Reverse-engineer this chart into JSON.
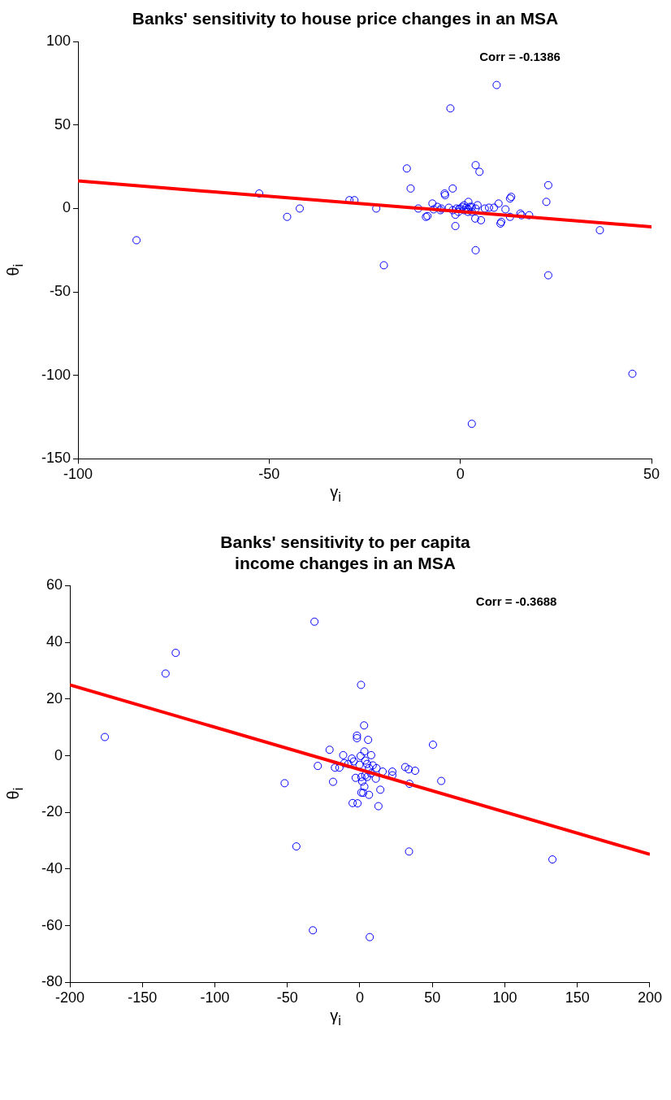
{
  "chart_data": [
    {
      "type": "scatter",
      "title": "Banks' sensitivity to house price changes in an MSA",
      "xlabel": "γ$_{i}$",
      "ylabel": "θ$_{i}$",
      "annotations": [
        "Corr = -0.1386"
      ],
      "xlim": [
        -100,
        50
      ],
      "xticks": [
        -100,
        -50,
        0,
        50
      ],
      "ylim": [
        -150,
        100
      ],
      "yticks": [
        -150,
        -100,
        -50,
        0,
        50,
        100
      ],
      "grid": false,
      "legend": false,
      "marker": "circle",
      "series": [
        {
          "type": "scatter",
          "color": "#0000ff",
          "x": [
            -84.7,
            -52.6,
            -45.3,
            -42,
            -29,
            -27.7,
            -22,
            -20,
            -14,
            -13,
            -11,
            -9,
            -2.6,
            -2,
            -1.3,
            -4,
            4,
            5,
            4,
            9.5,
            10.5,
            13,
            13,
            16,
            18,
            23,
            22.5,
            23,
            36.5,
            45,
            3,
            -8.6,
            -7.3,
            -5.2,
            -4.1,
            -0.4,
            -1.3,
            2.1,
            3.9,
            5.4,
            4.5,
            6.4,
            7.5,
            8.8,
            10,
            11.8,
            10.7,
            13.3,
            15.7,
            0,
            0.5,
            1,
            1.5,
            2,
            2.5,
            -1,
            -2,
            -3,
            -5,
            -6,
            -7,
            3,
            4,
            -0.5,
            1,
            2,
            3
          ],
          "values": [
            -19,
            9,
            -5,
            0,
            5,
            5,
            0,
            -34,
            24,
            12,
            0,
            -5,
            60,
            12,
            -10.5,
            8,
            26,
            22,
            -25,
            74,
            -9,
            6,
            -5,
            -4,
            -4,
            14,
            4,
            -40,
            -13,
            -99,
            -129,
            -4.5,
            3,
            -1,
            9,
            -0.4,
            -3.7,
            4,
            -6,
            -7,
            2,
            0,
            0.5,
            0.5,
            3,
            -0.5,
            -8,
            7,
            -3,
            0,
            1,
            -1,
            0.5,
            -0.5,
            1,
            0,
            -1,
            0.5,
            0,
            1,
            -0.5,
            -2,
            0,
            -2,
            2,
            -2,
            1
          ]
        },
        {
          "type": "line",
          "color": "#ff0000",
          "marker": "none",
          "x": [
            -100,
            50
          ],
          "values": [
            16.5,
            -11
          ]
        }
      ]
    },
    {
      "type": "scatter",
      "title": "Banks' sensitivity to per capita\nincome changes in an MSA",
      "xlabel": "γ$_{i}$",
      "ylabel": "θ$_{i}$",
      "annotations": [
        "Corr = -0.3688"
      ],
      "xlim": [
        -200,
        200
      ],
      "xticks": [
        -200,
        -150,
        -100,
        -50,
        0,
        50,
        100,
        150,
        200
      ],
      "ylim": [
        -80,
        60
      ],
      "yticks": [
        -80,
        -60,
        -40,
        -20,
        0,
        20,
        40,
        60
      ],
      "grid": false,
      "legend": false,
      "marker": "circle",
      "series": [
        {
          "type": "scatter",
          "color": "#0000ff",
          "x": [
            -175.9,
            -127,
            -134,
            -31.3,
            0.8,
            2.9,
            -2,
            -2,
            5.7,
            50.4,
            -20.9,
            -11.5,
            3.1,
            7.8,
            -29,
            -17.2,
            -14.1,
            -51.9,
            -18.5,
            56.1,
            34.2,
            31.3,
            33.7,
            38.1,
            22.4,
            22.4,
            15.7,
            14.1,
            -2.9,
            1.6,
            3.1,
            1,
            2.3,
            6.3,
            -5,
            -1.6,
            12.8,
            11,
            -43.8,
            33.9,
            132.8,
            -32.4,
            6.8,
            -4.2,
            -5.5,
            0.5,
            3.7,
            5,
            6.3,
            8.9,
            11.5,
            3.7,
            -8,
            -10.7,
            -0.3,
            7.6,
            1,
            5
          ],
          "values": [
            6.6,
            36.3,
            29,
            47.3,
            25,
            10.7,
            7.1,
            6.2,
            5.6,
            3.9,
            2.1,
            0.2,
            1.5,
            0.2,
            -3.6,
            -4.2,
            -4.2,
            -9.7,
            -9.2,
            -8.9,
            -9.9,
            -4,
            -4.8,
            -5.3,
            -5.6,
            -6.9,
            -5.6,
            -12,
            -7.8,
            -9.1,
            -10.9,
            -13,
            -13.1,
            -13.8,
            -16.7,
            -16.8,
            -17.8,
            -8.1,
            -32,
            -33.8,
            -36.6,
            -61.6,
            -64,
            -2,
            -1,
            -0.1,
            -1.7,
            -2.9,
            -4.4,
            -3.4,
            -4.4,
            -6.9,
            -2.9,
            -2.6,
            -3.2,
            -6.2,
            -7.5,
            -7.5
          ]
        },
        {
          "type": "line",
          "color": "#ff0000",
          "marker": "none",
          "x": [
            -200,
            200
          ],
          "values": [
            25,
            -34.8
          ]
        }
      ]
    }
  ]
}
